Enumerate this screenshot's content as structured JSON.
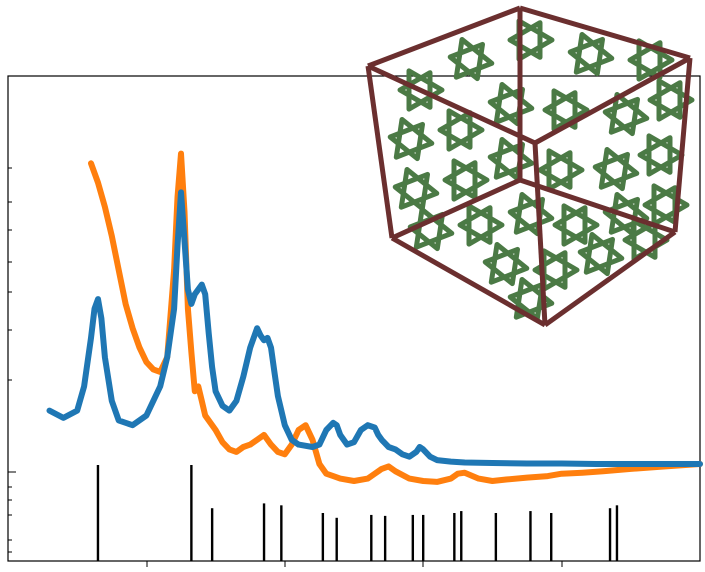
{
  "chart_data": {
    "type": "line",
    "title": "",
    "xlabel": "",
    "ylabel": "",
    "xlim": [
      0,
      1
    ],
    "ylim": [
      0,
      1
    ],
    "grid": false,
    "legend": "none",
    "series": [
      {
        "color": "#1f77b4",
        "x": [
          0.06,
          0.08,
          0.1,
          0.11,
          0.12,
          0.125,
          0.13,
          0.135,
          0.14,
          0.15,
          0.16,
          0.18,
          0.2,
          0.22,
          0.23,
          0.24,
          0.245,
          0.25,
          0.255,
          0.26,
          0.265,
          0.27,
          0.28,
          0.285,
          0.29,
          0.295,
          0.3,
          0.31,
          0.32,
          0.33,
          0.34,
          0.35,
          0.36,
          0.365,
          0.37,
          0.375,
          0.38,
          0.385,
          0.39,
          0.4,
          0.41,
          0.42,
          0.44,
          0.45,
          0.46,
          0.47,
          0.475,
          0.48,
          0.49,
          0.5,
          0.51,
          0.52,
          0.53,
          0.535,
          0.54,
          0.55,
          0.56,
          0.57,
          0.58,
          0.59,
          0.595,
          0.6,
          0.61,
          0.62,
          0.64,
          0.66,
          0.7,
          0.75,
          0.8,
          0.85,
          0.9,
          0.95,
          1.0
        ],
        "y": [
          0.31,
          0.295,
          0.31,
          0.36,
          0.46,
          0.52,
          0.54,
          0.5,
          0.42,
          0.33,
          0.29,
          0.28,
          0.3,
          0.36,
          0.42,
          0.52,
          0.65,
          0.76,
          0.66,
          0.56,
          0.53,
          0.55,
          0.57,
          0.55,
          0.47,
          0.4,
          0.35,
          0.32,
          0.31,
          0.33,
          0.38,
          0.44,
          0.48,
          0.465,
          0.455,
          0.46,
          0.44,
          0.39,
          0.34,
          0.28,
          0.25,
          0.24,
          0.235,
          0.24,
          0.27,
          0.285,
          0.28,
          0.26,
          0.24,
          0.245,
          0.27,
          0.28,
          0.275,
          0.26,
          0.25,
          0.235,
          0.23,
          0.22,
          0.215,
          0.225,
          0.235,
          0.23,
          0.215,
          0.208,
          0.205,
          0.203,
          0.202,
          0.201,
          0.201,
          0.2,
          0.2,
          0.2,
          0.2
        ]
      },
      {
        "color": "#ff7f0e",
        "x": [
          0.12,
          0.13,
          0.14,
          0.15,
          0.16,
          0.17,
          0.18,
          0.19,
          0.2,
          0.21,
          0.22,
          0.23,
          0.24,
          0.245,
          0.25,
          0.255,
          0.26,
          0.265,
          0.27,
          0.275,
          0.28,
          0.285,
          0.29,
          0.3,
          0.31,
          0.32,
          0.33,
          0.34,
          0.35,
          0.36,
          0.37,
          0.38,
          0.39,
          0.4,
          0.41,
          0.42,
          0.43,
          0.44,
          0.45,
          0.46,
          0.47,
          0.48,
          0.5,
          0.52,
          0.53,
          0.54,
          0.55,
          0.56,
          0.58,
          0.6,
          0.62,
          0.64,
          0.65,
          0.66,
          0.68,
          0.7,
          0.72,
          0.75,
          0.78,
          0.8,
          0.83,
          0.86,
          0.9,
          0.95,
          1.0
        ],
        "y": [
          0.82,
          0.78,
          0.73,
          0.67,
          0.6,
          0.53,
          0.48,
          0.44,
          0.41,
          0.395,
          0.39,
          0.42,
          0.6,
          0.75,
          0.84,
          0.72,
          0.52,
          0.43,
          0.35,
          0.36,
          0.33,
          0.3,
          0.29,
          0.27,
          0.245,
          0.23,
          0.225,
          0.235,
          0.24,
          0.25,
          0.26,
          0.24,
          0.225,
          0.22,
          0.24,
          0.27,
          0.28,
          0.25,
          0.2,
          0.18,
          0.175,
          0.17,
          0.165,
          0.17,
          0.18,
          0.19,
          0.195,
          0.185,
          0.17,
          0.165,
          0.163,
          0.17,
          0.18,
          0.182,
          0.17,
          0.165,
          0.168,
          0.172,
          0.175,
          0.18,
          0.182,
          0.185,
          0.19,
          0.195,
          0.2
        ]
      }
    ],
    "reference_ticks": {
      "x": [
        0.13,
        0.265,
        0.295,
        0.37,
        0.395,
        0.455,
        0.475,
        0.525,
        0.545,
        0.585,
        0.6,
        0.645,
        0.655,
        0.705,
        0.755,
        0.785,
        0.87,
        0.88
      ],
      "height": [
        1,
        1,
        0.55,
        0.6,
        0.58,
        0.5,
        0.45,
        0.48,
        0.47,
        0.48,
        0.48,
        0.5,
        0.52,
        0.5,
        0.52,
        0.5,
        0.55,
        0.58
      ]
    },
    "inset": {
      "description": "cubic lattice",
      "frame_color": "#6b2f2f",
      "lattice_color": "#4b7a45"
    }
  }
}
